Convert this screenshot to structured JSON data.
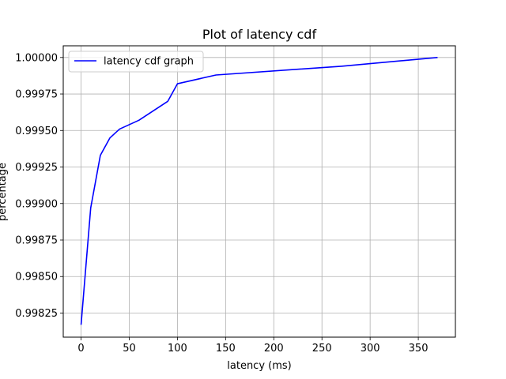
{
  "chart_data": {
    "type": "line",
    "title": "Plot of latency cdf",
    "xlabel": "latency (ms)",
    "ylabel": "percentage",
    "xlim": [
      -18.5,
      388.5
    ],
    "ylim": [
      0.998085,
      1.00008
    ],
    "grid": true,
    "legend_position": "top-left",
    "x_ticks": [
      0,
      50,
      100,
      150,
      200,
      250,
      300,
      350
    ],
    "x_tick_labels": [
      "0",
      "50",
      "100",
      "150",
      "200",
      "250",
      "300",
      "350"
    ],
    "y_ticks": [
      0.99825,
      0.9985,
      0.99875,
      0.999,
      0.99925,
      0.9995,
      0.99975,
      1.0
    ],
    "y_tick_labels": [
      "0.99825",
      "0.99850",
      "0.99875",
      "0.99900",
      "0.99925",
      "0.99950",
      "0.99975",
      "1.00000"
    ],
    "series": [
      {
        "name": "latency cdf graph",
        "color": "#0000ff",
        "x": [
          0,
          10,
          20,
          30,
          40,
          60,
          90,
          100,
          140,
          270,
          370
        ],
        "y": [
          0.99817,
          0.99897,
          0.99933,
          0.99945,
          0.99951,
          0.99957,
          0.9997,
          0.99982,
          0.99988,
          0.99994,
          1.0
        ]
      }
    ]
  }
}
